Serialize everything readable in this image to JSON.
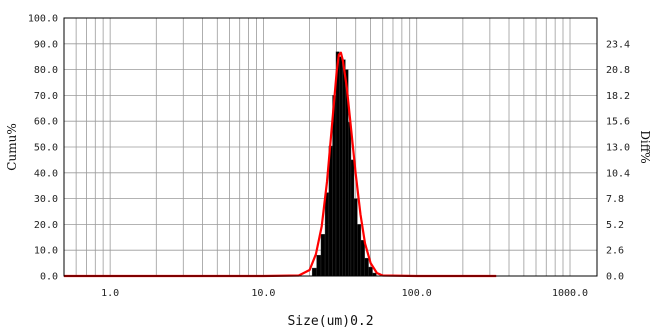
{
  "chart_data": {
    "type": "bar",
    "xlabel": "Size(um)0.2",
    "ylabel_left": "Cumu%",
    "ylabel_right": "Diff%",
    "x_scale": "log",
    "xlim": [
      0.5,
      1500
    ],
    "ylim_left": [
      0,
      100
    ],
    "ylim_right": [
      0,
      26
    ],
    "x_ticks": [
      {
        "value": 1,
        "label": "1.0"
      },
      {
        "value": 10,
        "label": "10.0"
      },
      {
        "value": 100,
        "label": "100.0"
      },
      {
        "value": 1000,
        "label": "1000.0"
      }
    ],
    "y_ticks_left": [
      "0.0",
      "10.0",
      "20.0",
      "30.0",
      "40.0",
      "50.0",
      "60.0",
      "70.0",
      "80.0",
      "90.0",
      "100.0"
    ],
    "y_ticks_right": [
      "0.0",
      "2.6",
      "5.2",
      "7.8",
      "10.4",
      "13.0",
      "15.6",
      "18.2",
      "20.8",
      "23.4"
    ],
    "grid": true,
    "histogram_color": "#000000",
    "curve_color": "#ff0000",
    "series": [
      {
        "kind": "histogram",
        "axis": "right",
        "x": [
          21.5,
          23,
          24.5,
          26,
          27.5,
          29,
          30.5,
          32,
          33.5,
          35,
          36.5,
          38,
          40,
          42,
          44.5,
          47,
          50,
          53
        ],
        "values": [
          0.8,
          2.1,
          4.2,
          8.4,
          13.1,
          18.2,
          22.6,
          22.1,
          21.8,
          20.8,
          15.5,
          11.7,
          7.8,
          5.2,
          3.6,
          1.8,
          0.9,
          0.3
        ]
      },
      {
        "kind": "curve",
        "axis": "right",
        "x": [
          0.5,
          10,
          17,
          20,
          22,
          24,
          26,
          28,
          30,
          31,
          32,
          33,
          35,
          37,
          40,
          43,
          46,
          50,
          55,
          60,
          100,
          330
        ],
        "values": [
          0,
          0,
          0.05,
          0.6,
          2.2,
          5.0,
          9.5,
          15.2,
          20.5,
          22.3,
          22.5,
          21.7,
          19.0,
          15.4,
          10.3,
          6.2,
          3.3,
          1.3,
          0.3,
          0.05,
          0,
          0
        ]
      }
    ]
  }
}
